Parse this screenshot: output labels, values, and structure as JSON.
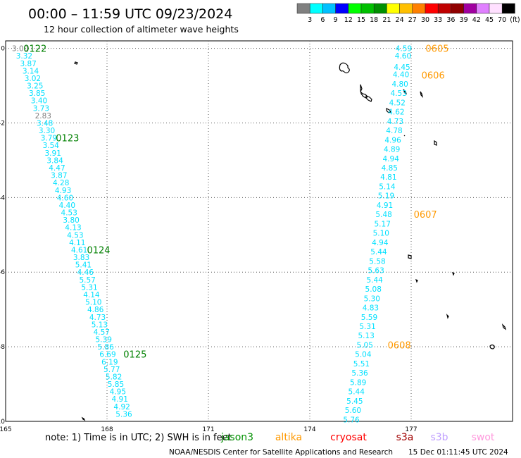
{
  "header": {
    "title": "00:00 – 11:59 UTC 09/23/2024",
    "subtitle": "12 hour collection of altimeter wave heights"
  },
  "colorbar": {
    "colors": [
      "#808080",
      "#00ffff",
      "#00c0ff",
      "#0000ff",
      "#00ff00",
      "#00c000",
      "#009000",
      "#ffff00",
      "#ffc000",
      "#ff8000",
      "#ff0000",
      "#c00000",
      "#900000",
      "#a000a0",
      "#e080ff",
      "#ffe0ff",
      "#000000"
    ],
    "labels": [
      "3",
      "6",
      "9",
      "12",
      "15",
      "18",
      "21",
      "24",
      "27",
      "30",
      "33",
      "36",
      "39",
      "42",
      "45",
      "70",
      "(ft)"
    ]
  },
  "map": {
    "x_ticks": [
      {
        "value": 165,
        "label": "165"
      },
      {
        "value": 168,
        "label": "168"
      },
      {
        "value": 171,
        "label": "171"
      },
      {
        "value": 174,
        "label": "174"
      },
      {
        "value": 177,
        "label": "177"
      }
    ],
    "y_ticks": [
      {
        "value": 0,
        "label": "0"
      },
      {
        "value": -2,
        "label": "-2"
      },
      {
        "value": -4,
        "label": "-4"
      },
      {
        "value": -6,
        "label": "-6"
      },
      {
        "value": -8,
        "label": "-8"
      },
      {
        "value": -10,
        "label": "-10"
      }
    ],
    "xlim": [
      165,
      180
    ],
    "ylim": [
      -10,
      0.2
    ],
    "grid": "dotted",
    "track_color": "#00e0ff",
    "flag_color": "#808080",
    "time_green": "#008000",
    "time_orange": "#ff9900"
  },
  "tracks": [
    {
      "name": "track-west",
      "time_color": "green",
      "points": [
        {
          "x": 165.43,
          "y": 0.0,
          "v": "3.00",
          "flag": true
        },
        {
          "x": 165.55,
          "y": -0.2,
          "v": "3.32"
        },
        {
          "x": 165.67,
          "y": -0.4,
          "v": "3.87"
        },
        {
          "x": 165.74,
          "y": -0.6,
          "v": "3.14"
        },
        {
          "x": 165.8,
          "y": -0.8,
          "v": "3.02"
        },
        {
          "x": 165.87,
          "y": -1.0,
          "v": "3.25"
        },
        {
          "x": 165.93,
          "y": -1.2,
          "v": "3.85"
        },
        {
          "x": 165.99,
          "y": -1.4,
          "v": "3.40"
        },
        {
          "x": 166.05,
          "y": -1.6,
          "v": "3.73"
        },
        {
          "x": 166.11,
          "y": -1.8,
          "v": "2.83",
          "flag": true
        },
        {
          "x": 166.16,
          "y": -2.0,
          "v": "3.48"
        },
        {
          "x": 166.22,
          "y": -2.2,
          "v": "3.30"
        },
        {
          "x": 166.28,
          "y": -2.4,
          "v": "3.79"
        },
        {
          "x": 166.34,
          "y": -2.6,
          "v": "3.54"
        },
        {
          "x": 166.4,
          "y": -2.8,
          "v": "3.91"
        },
        {
          "x": 166.46,
          "y": -3.0,
          "v": "3.84"
        },
        {
          "x": 166.52,
          "y": -3.2,
          "v": "4.47"
        },
        {
          "x": 166.58,
          "y": -3.4,
          "v": "3.87"
        },
        {
          "x": 166.64,
          "y": -3.6,
          "v": "4.28"
        },
        {
          "x": 166.7,
          "y": -3.8,
          "v": "4.93"
        },
        {
          "x": 166.76,
          "y": -4.0,
          "v": "4.60"
        },
        {
          "x": 166.82,
          "y": -4.2,
          "v": "4.40"
        },
        {
          "x": 166.88,
          "y": -4.4,
          "v": "4.53"
        },
        {
          "x": 166.94,
          "y": -4.6,
          "v": "3.80"
        },
        {
          "x": 167.0,
          "y": -4.8,
          "v": "4.13"
        },
        {
          "x": 167.06,
          "y": -5.0,
          "v": "4.53"
        },
        {
          "x": 167.12,
          "y": -5.2,
          "v": "4.11"
        },
        {
          "x": 167.18,
          "y": -5.4,
          "v": "4.61"
        },
        {
          "x": 167.24,
          "y": -5.6,
          "v": "3.83"
        },
        {
          "x": 167.3,
          "y": -5.8,
          "v": "5.41"
        },
        {
          "x": 167.36,
          "y": -6.0,
          "v": "4.46"
        },
        {
          "x": 167.42,
          "y": -6.2,
          "v": "5.57"
        },
        {
          "x": 167.48,
          "y": -6.4,
          "v": "5.31"
        },
        {
          "x": 167.54,
          "y": -6.6,
          "v": "4.14"
        },
        {
          "x": 167.6,
          "y": -6.8,
          "v": "5.10"
        },
        {
          "x": 167.66,
          "y": -7.0,
          "v": "4.86"
        },
        {
          "x": 167.72,
          "y": -7.2,
          "v": "4.73"
        },
        {
          "x": 167.78,
          "y": -7.4,
          "v": "5.13"
        },
        {
          "x": 167.84,
          "y": -7.6,
          "v": "4.57"
        },
        {
          "x": 167.9,
          "y": -7.8,
          "v": "5.39"
        },
        {
          "x": 167.96,
          "y": -8.0,
          "v": "5.86"
        },
        {
          "x": 168.02,
          "y": -8.2,
          "v": "6.69"
        },
        {
          "x": 168.08,
          "y": -8.4,
          "v": "6.19"
        },
        {
          "x": 168.14,
          "y": -8.6,
          "v": "5.77"
        },
        {
          "x": 168.2,
          "y": -8.8,
          "v": "5.82"
        },
        {
          "x": 168.26,
          "y": -9.0,
          "v": "5.85"
        },
        {
          "x": 168.32,
          "y": -9.2,
          "v": "4.95"
        },
        {
          "x": 168.38,
          "y": -9.4,
          "v": "4.91"
        },
        {
          "x": 168.44,
          "y": -9.6,
          "v": "4.92"
        },
        {
          "x": 168.5,
          "y": -9.8,
          "v": "5.36"
        }
      ],
      "times": [
        {
          "x": 165.87,
          "y": 0.0,
          "label": "0122"
        },
        {
          "x": 166.83,
          "y": -2.4,
          "label": "0123"
        },
        {
          "x": 167.75,
          "y": -5.4,
          "label": "0124"
        },
        {
          "x": 168.83,
          "y": -8.2,
          "label": "0125"
        }
      ]
    },
    {
      "name": "track-east",
      "time_color": "orange",
      "points": [
        {
          "x": 176.78,
          "y": 0.0,
          "v": "4.59"
        },
        {
          "x": 176.76,
          "y": -0.2,
          "v": "4.60"
        },
        {
          "x": 176.73,
          "y": -0.5,
          "v": "4.45"
        },
        {
          "x": 176.7,
          "y": -0.7,
          "v": "4.40"
        },
        {
          "x": 176.67,
          "y": -0.95,
          "v": "4.80"
        },
        {
          "x": 176.63,
          "y": -1.2,
          "v": "4.53"
        },
        {
          "x": 176.59,
          "y": -1.45,
          "v": "4.52"
        },
        {
          "x": 176.56,
          "y": -1.7,
          "v": "4.62"
        },
        {
          "x": 176.53,
          "y": -1.95,
          "v": "4.73"
        },
        {
          "x": 176.5,
          "y": -2.2,
          "v": "4.78"
        },
        {
          "x": 176.46,
          "y": -2.45,
          "v": "4.96"
        },
        {
          "x": 176.43,
          "y": -2.7,
          "v": "4.89"
        },
        {
          "x": 176.4,
          "y": -2.95,
          "v": "4.94"
        },
        {
          "x": 176.36,
          "y": -3.2,
          "v": "4.85"
        },
        {
          "x": 176.33,
          "y": -3.45,
          "v": "4.81"
        },
        {
          "x": 176.29,
          "y": -3.7,
          "v": "5.14"
        },
        {
          "x": 176.26,
          "y": -3.95,
          "v": "5.19"
        },
        {
          "x": 176.22,
          "y": -4.2,
          "v": "4.91"
        },
        {
          "x": 176.19,
          "y": -4.45,
          "v": "5.48"
        },
        {
          "x": 176.15,
          "y": -4.7,
          "v": "5.17"
        },
        {
          "x": 176.11,
          "y": -4.95,
          "v": "5.10"
        },
        {
          "x": 176.08,
          "y": -5.2,
          "v": "4.94"
        },
        {
          "x": 176.04,
          "y": -5.45,
          "v": "5.44"
        },
        {
          "x": 176.0,
          "y": -5.7,
          "v": "5.58"
        },
        {
          "x": 175.96,
          "y": -5.95,
          "v": "5.63"
        },
        {
          "x": 175.92,
          "y": -6.2,
          "v": "5.44"
        },
        {
          "x": 175.88,
          "y": -6.45,
          "v": "5.08"
        },
        {
          "x": 175.84,
          "y": -6.7,
          "v": "5.30"
        },
        {
          "x": 175.8,
          "y": -6.95,
          "v": "4.83"
        },
        {
          "x": 175.76,
          "y": -7.2,
          "v": "5.59"
        },
        {
          "x": 175.71,
          "y": -7.45,
          "v": "5.31"
        },
        {
          "x": 175.67,
          "y": -7.7,
          "v": "5.13"
        },
        {
          "x": 175.63,
          "y": -7.95,
          "v": "5.05"
        },
        {
          "x": 175.58,
          "y": -8.2,
          "v": "5.04"
        },
        {
          "x": 175.53,
          "y": -8.45,
          "v": "5.51"
        },
        {
          "x": 175.48,
          "y": -8.7,
          "v": "5.36"
        },
        {
          "x": 175.43,
          "y": -8.95,
          "v": "5.89"
        },
        {
          "x": 175.38,
          "y": -9.2,
          "v": "5.44"
        },
        {
          "x": 175.33,
          "y": -9.45,
          "v": "5.45"
        },
        {
          "x": 175.28,
          "y": -9.7,
          "v": "5.60"
        },
        {
          "x": 175.23,
          "y": -9.95,
          "v": "5.76"
        }
      ],
      "times": [
        {
          "x": 177.77,
          "y": 0.0,
          "label": "0605"
        },
        {
          "x": 177.65,
          "y": -0.72,
          "label": "0606"
        },
        {
          "x": 177.42,
          "y": -4.45,
          "label": "0607"
        },
        {
          "x": 176.65,
          "y": -7.95,
          "label": "0608"
        }
      ]
    }
  ],
  "footer": {
    "note": "note: 1) Time is in UTC; 2) SWH is in feet",
    "legend": [
      {
        "label": "jason3",
        "color": "#009000"
      },
      {
        "label": "altika",
        "color": "#ff9900"
      },
      {
        "label": "cryosat",
        "color": "#ff0000"
      },
      {
        "label": "s3a",
        "color": "#a00000"
      },
      {
        "label": "s3b",
        "color": "#c0a0ff"
      },
      {
        "label": "swot",
        "color": "#ff99dd"
      }
    ],
    "credit": "NOAA/NESDIS Center for Satellite Applications and Research",
    "timestamp": "15 Dec 01:11:45 UTC 2024"
  }
}
